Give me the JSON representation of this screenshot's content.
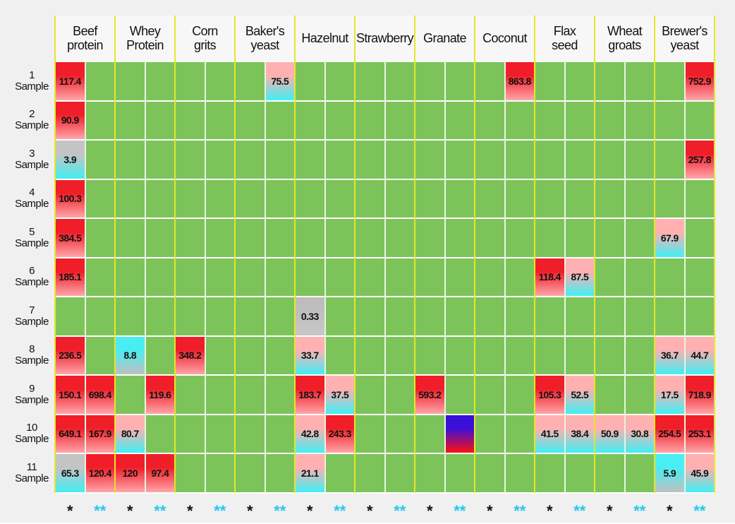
{
  "grid_color": "#7cc45a",
  "group_line_color": "#e6e62a",
  "palettes": {
    "r": [
      "#f01e28",
      "#ffa6aa"
    ],
    "c": [
      "#ffb0b0",
      "#3ff0f5"
    ],
    "g": [
      "#bdbdbd",
      "#c8c8c8"
    ],
    "cg": [
      "#49eef2",
      "#c0c0c0"
    ],
    "gc": [
      "#c4c4c4",
      "#44eef2"
    ],
    "b": [
      "#3a10d8",
      "#ff1010"
    ]
  },
  "groups": [
    {
      "name": [
        "Beef",
        "protein"
      ],
      "marks": [
        "*",
        "**"
      ]
    },
    {
      "name": [
        "Whey",
        "Protein"
      ],
      "marks": [
        "*",
        "**"
      ]
    },
    {
      "name": [
        "Corn",
        "grits"
      ],
      "marks": [
        "*",
        "**"
      ]
    },
    {
      "name": [
        "Baker's",
        "yeast"
      ],
      "marks": [
        "*",
        "**"
      ]
    },
    {
      "name": [
        "Hazelnut"
      ],
      "marks": [
        "*",
        "**"
      ]
    },
    {
      "name": [
        "Strawberry"
      ],
      "marks": [
        "*",
        "**"
      ]
    },
    {
      "name": [
        "Granate"
      ],
      "marks": [
        "*",
        "**"
      ]
    },
    {
      "name": [
        "Coconut"
      ],
      "marks": [
        "*",
        "**"
      ]
    },
    {
      "name": [
        "Flax",
        "seed"
      ],
      "marks": [
        "*",
        "**"
      ]
    },
    {
      "name": [
        "Wheat",
        "groats"
      ],
      "marks": [
        "*",
        "**"
      ]
    },
    {
      "name": [
        "Brewer's",
        "yeast"
      ],
      "marks": [
        "*",
        "**"
      ]
    }
  ],
  "mark_colors": [
    "#111111",
    "#22c8ee"
  ],
  "rows": [
    {
      "label": [
        "1",
        "Sample"
      ],
      "cells": [
        {
          "text": "117.4",
          "fill": "r"
        },
        null,
        null,
        null,
        null,
        null,
        null,
        {
          "text": "75.5",
          "fill": "c"
        },
        null,
        null,
        null,
        null,
        null,
        null,
        null,
        {
          "text": "863.8",
          "fill": "r"
        },
        null,
        null,
        null,
        null,
        null,
        {
          "text": "752.9",
          "fill": "r"
        }
      ]
    },
    {
      "label": [
        "2",
        "Sample"
      ],
      "cells": [
        {
          "text": "90.9",
          "fill": "r"
        },
        null,
        null,
        null,
        null,
        null,
        null,
        null,
        null,
        null,
        null,
        null,
        null,
        null,
        null,
        null,
        null,
        null,
        null,
        null,
        null,
        null
      ]
    },
    {
      "label": [
        "3",
        "Sample"
      ],
      "cells": [
        {
          "text": "3.9",
          "fill": "gc"
        },
        null,
        null,
        null,
        null,
        null,
        null,
        null,
        null,
        null,
        null,
        null,
        null,
        null,
        null,
        null,
        null,
        null,
        null,
        null,
        null,
        {
          "text": "257.8",
          "fill": "r"
        }
      ]
    },
    {
      "label": [
        "4",
        "Sample"
      ],
      "cells": [
        {
          "text": "100.3",
          "fill": "r"
        },
        null,
        null,
        null,
        null,
        null,
        null,
        null,
        null,
        null,
        null,
        null,
        null,
        null,
        null,
        null,
        null,
        null,
        null,
        null,
        null,
        null
      ]
    },
    {
      "label": [
        "5",
        "Sample"
      ],
      "cells": [
        {
          "text": "384.5",
          "fill": "r"
        },
        null,
        null,
        null,
        null,
        null,
        null,
        null,
        null,
        null,
        null,
        null,
        null,
        null,
        null,
        null,
        null,
        null,
        null,
        null,
        {
          "text": "67.9",
          "fill": "c"
        },
        null
      ]
    },
    {
      "label": [
        "6",
        "Sample"
      ],
      "cells": [
        {
          "text": "185.1",
          "fill": "r"
        },
        null,
        null,
        null,
        null,
        null,
        null,
        null,
        null,
        null,
        null,
        null,
        null,
        null,
        null,
        null,
        {
          "text": "118.4",
          "fill": "r"
        },
        {
          "text": "87.5",
          "fill": "c"
        },
        null,
        null,
        null,
        null
      ]
    },
    {
      "label": [
        "7",
        "Sample"
      ],
      "cells": [
        null,
        null,
        null,
        null,
        null,
        null,
        null,
        null,
        {
          "text": "0.33",
          "fill": "g"
        },
        null,
        null,
        null,
        null,
        null,
        null,
        null,
        null,
        null,
        null,
        null,
        null,
        null
      ]
    },
    {
      "label": [
        "8",
        "Sample"
      ],
      "cells": [
        {
          "text": "236.5",
          "fill": "r"
        },
        null,
        {
          "text": "8.8",
          "fill": "cg"
        },
        null,
        {
          "text": "348.2",
          "fill": "r"
        },
        null,
        null,
        null,
        {
          "text": "33.7",
          "fill": "c"
        },
        null,
        null,
        null,
        null,
        null,
        null,
        null,
        null,
        null,
        null,
        null,
        {
          "text": "36.7",
          "fill": "c"
        },
        {
          "text": "44.7",
          "fill": "c"
        }
      ]
    },
    {
      "label": [
        "9",
        "Sample"
      ],
      "cells": [
        {
          "text": "150.1",
          "fill": "r"
        },
        {
          "text": "698.4",
          "fill": "r"
        },
        null,
        {
          "text": "119.6",
          "fill": "r"
        },
        null,
        null,
        null,
        null,
        {
          "text": "183.7",
          "fill": "r"
        },
        {
          "text": "37.5",
          "fill": "c"
        },
        null,
        null,
        {
          "text": "593.2",
          "fill": "r"
        },
        null,
        null,
        null,
        {
          "text": "105.3",
          "fill": "r"
        },
        {
          "text": "52.5",
          "fill": "c"
        },
        null,
        null,
        {
          "text": "17.5",
          "fill": "c"
        },
        {
          "text": "718.9",
          "fill": "r"
        }
      ]
    },
    {
      "label": [
        "10",
        "Sample"
      ],
      "cells": [
        {
          "text": "649.1",
          "fill": "r"
        },
        {
          "text": "167.9",
          "fill": "r"
        },
        {
          "text": "80.7",
          "fill": "c"
        },
        null,
        null,
        null,
        null,
        null,
        {
          "text": "42.8",
          "fill": "c"
        },
        {
          "text": "243.3",
          "fill": "r"
        },
        null,
        null,
        null,
        {
          "fill": "b"
        },
        null,
        null,
        {
          "text": "41.5",
          "fill": "c"
        },
        {
          "text": "38.4",
          "fill": "c"
        },
        {
          "text": "50.9",
          "fill": "c"
        },
        {
          "text": "30.8",
          "fill": "c"
        },
        {
          "text": "254.5",
          "fill": "r"
        },
        {
          "text": "253.1",
          "fill": "r"
        }
      ]
    },
    {
      "label": [
        "11",
        "Sample"
      ],
      "cells": [
        {
          "text": "65.3",
          "fill": "gc"
        },
        {
          "text": "120.4",
          "fill": "r"
        },
        {
          "text": "120",
          "fill": "r"
        },
        {
          "text": "97.4",
          "fill": "r"
        },
        null,
        null,
        null,
        null,
        {
          "text": "21.1",
          "fill": "c"
        },
        null,
        null,
        null,
        null,
        null,
        null,
        null,
        null,
        null,
        null,
        null,
        {
          "text": "5.9",
          "fill": "cg"
        },
        {
          "text": "45.9",
          "fill": "c"
        }
      ]
    }
  ]
}
